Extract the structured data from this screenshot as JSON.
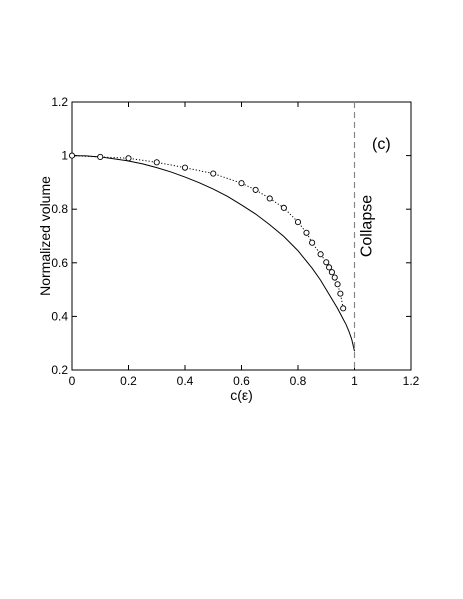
{
  "chart_data": {
    "type": "line",
    "xlabel": "c(ε)",
    "ylabel": "Normalized volume",
    "xlim": [
      0,
      1.2
    ],
    "ylim": [
      0.2,
      1.2
    ],
    "xticks": [
      0,
      0.2,
      0.4,
      0.6,
      0.8,
      1,
      1.2
    ],
    "yticks": [
      0.2,
      0.4,
      0.6,
      0.8,
      1,
      1.2
    ],
    "xtick_labels": [
      "0",
      "0.2",
      "0.4",
      "0.6",
      "0.8",
      "1",
      "1.2"
    ],
    "ytick_labels": [
      "0.2",
      "0.4",
      "0.6",
      "0.8",
      "1",
      "1.2"
    ],
    "grid": false,
    "panel_label": "(c)",
    "series": [
      {
        "style": "solid",
        "color": "#000000",
        "x": [
          0,
          0.05,
          0.1,
          0.15,
          0.2,
          0.25,
          0.3,
          0.35,
          0.4,
          0.45,
          0.5,
          0.55,
          0.6,
          0.65,
          0.7,
          0.75,
          0.8,
          0.85,
          0.88,
          0.9,
          0.92,
          0.94,
          0.96,
          0.97,
          0.98,
          0.99,
          1.0
        ],
        "y": [
          1.0,
          0.999,
          0.995,
          0.988,
          0.98,
          0.969,
          0.955,
          0.939,
          0.92,
          0.899,
          0.875,
          0.848,
          0.816,
          0.782,
          0.742,
          0.698,
          0.645,
          0.58,
          0.535,
          0.5,
          0.465,
          0.43,
          0.39,
          0.37,
          0.345,
          0.315,
          0.27
        ]
      },
      {
        "style": "dotted-markers",
        "marker": "circle",
        "color": "#000000",
        "x": [
          0,
          0.1,
          0.2,
          0.3,
          0.4,
          0.5,
          0.6,
          0.65,
          0.7,
          0.75,
          0.8,
          0.83,
          0.85,
          0.88,
          0.9,
          0.91,
          0.92,
          0.93,
          0.94,
          0.95,
          0.96
        ],
        "y": [
          1.0,
          0.995,
          0.99,
          0.975,
          0.955,
          0.933,
          0.897,
          0.872,
          0.84,
          0.805,
          0.752,
          0.712,
          0.675,
          0.632,
          0.602,
          0.583,
          0.565,
          0.545,
          0.52,
          0.485,
          0.43
        ]
      }
    ],
    "vline": {
      "x": 1.0,
      "style": "dashed",
      "color": "#888888",
      "label": "Collapse"
    }
  }
}
